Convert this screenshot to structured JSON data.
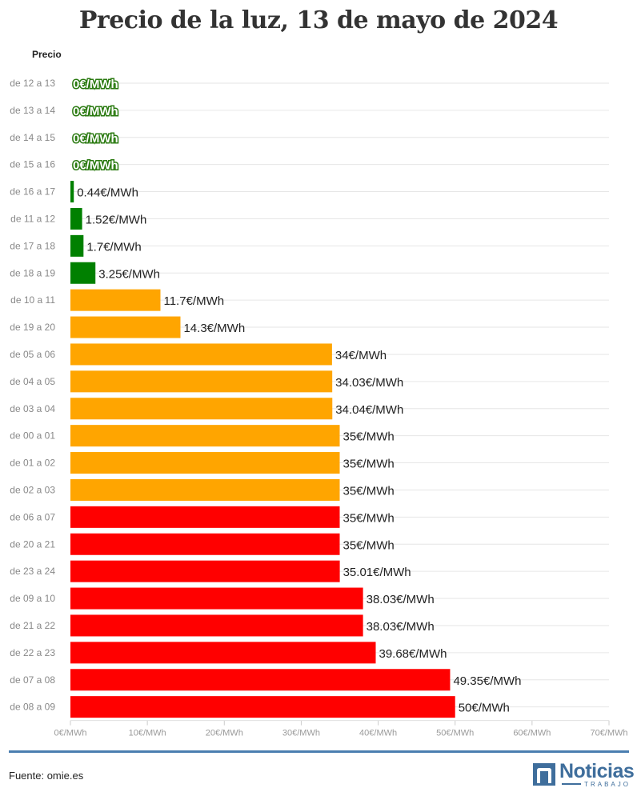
{
  "page": {
    "title": "Precio de la luz, 13 de mayo de 2024",
    "column_header": "Precio",
    "source": "Fuente: omie.es",
    "logo": {
      "word": "Noticias",
      "sub": "TRABAJO",
      "icon": "n-logo-icon"
    }
  },
  "chart_data": {
    "type": "bar",
    "orientation": "horizontal",
    "title": "Precio de la luz, 13 de mayo de 2024",
    "ylabel": "Precio",
    "unit_suffix": "€/MWh",
    "xlim": [
      0,
      70
    ],
    "x_ticks": [
      0,
      10,
      20,
      30,
      40,
      50,
      60,
      70
    ],
    "x_tick_labels": [
      "0€/MWh",
      "10€/MWh",
      "20€/MWh",
      "30€/MWh",
      "40€/MWh",
      "50€/MWh",
      "60€/MWh",
      "70€/MWh"
    ],
    "grid": true,
    "categories": [
      "de 12 a 13",
      "de 13 a 14",
      "de 14 a 15",
      "de 15 a 16",
      "de 16 a 17",
      "de 11 a 12",
      "de 17 a 18",
      "de 18 a 19",
      "de 10 a 11",
      "de 19 a 20",
      "de 05 a 06",
      "de 04 a 05",
      "de 03 a 04",
      "de 00 a 01",
      "de 01 a 02",
      "de 02 a 03",
      "de 06 a 07",
      "de 20 a 21",
      "de 23 a 24",
      "de 09 a 10",
      "de 21 a 22",
      "de 22 a 23",
      "de 07 a 08",
      "de 08 a 09"
    ],
    "values": [
      0,
      0,
      0,
      0,
      0.44,
      1.52,
      1.7,
      3.25,
      11.7,
      14.3,
      34,
      34.03,
      34.04,
      35,
      35,
      35,
      35,
      35,
      35.01,
      38.03,
      38.03,
      39.68,
      49.35,
      50
    ],
    "value_labels": [
      "0€/MWh",
      "0€/MWh",
      "0€/MWh",
      "0€/MWh",
      "0.44€/MWh",
      "1.52€/MWh",
      "1.7€/MWh",
      "3.25€/MWh",
      "11.7€/MWh",
      "14.3€/MWh",
      "34€/MWh",
      "34.03€/MWh",
      "34.04€/MWh",
      "35€/MWh",
      "35€/MWh",
      "35€/MWh",
      "35€/MWh",
      "35€/MWh",
      "35.01€/MWh",
      "38.03€/MWh",
      "38.03€/MWh",
      "39.68€/MWh",
      "49.35€/MWh",
      "50€/MWh"
    ],
    "bar_levels": [
      "low",
      "low",
      "low",
      "low",
      "low",
      "low",
      "low",
      "low",
      "mid",
      "mid",
      "mid",
      "mid",
      "mid",
      "mid",
      "mid",
      "mid",
      "high",
      "high",
      "high",
      "high",
      "high",
      "high",
      "high",
      "high"
    ],
    "colors": {
      "low": "#008000",
      "mid": "#FFA500",
      "high": "#FF0000",
      "grid": "#e6e6e6",
      "accent": "#4a7eb0"
    }
  }
}
